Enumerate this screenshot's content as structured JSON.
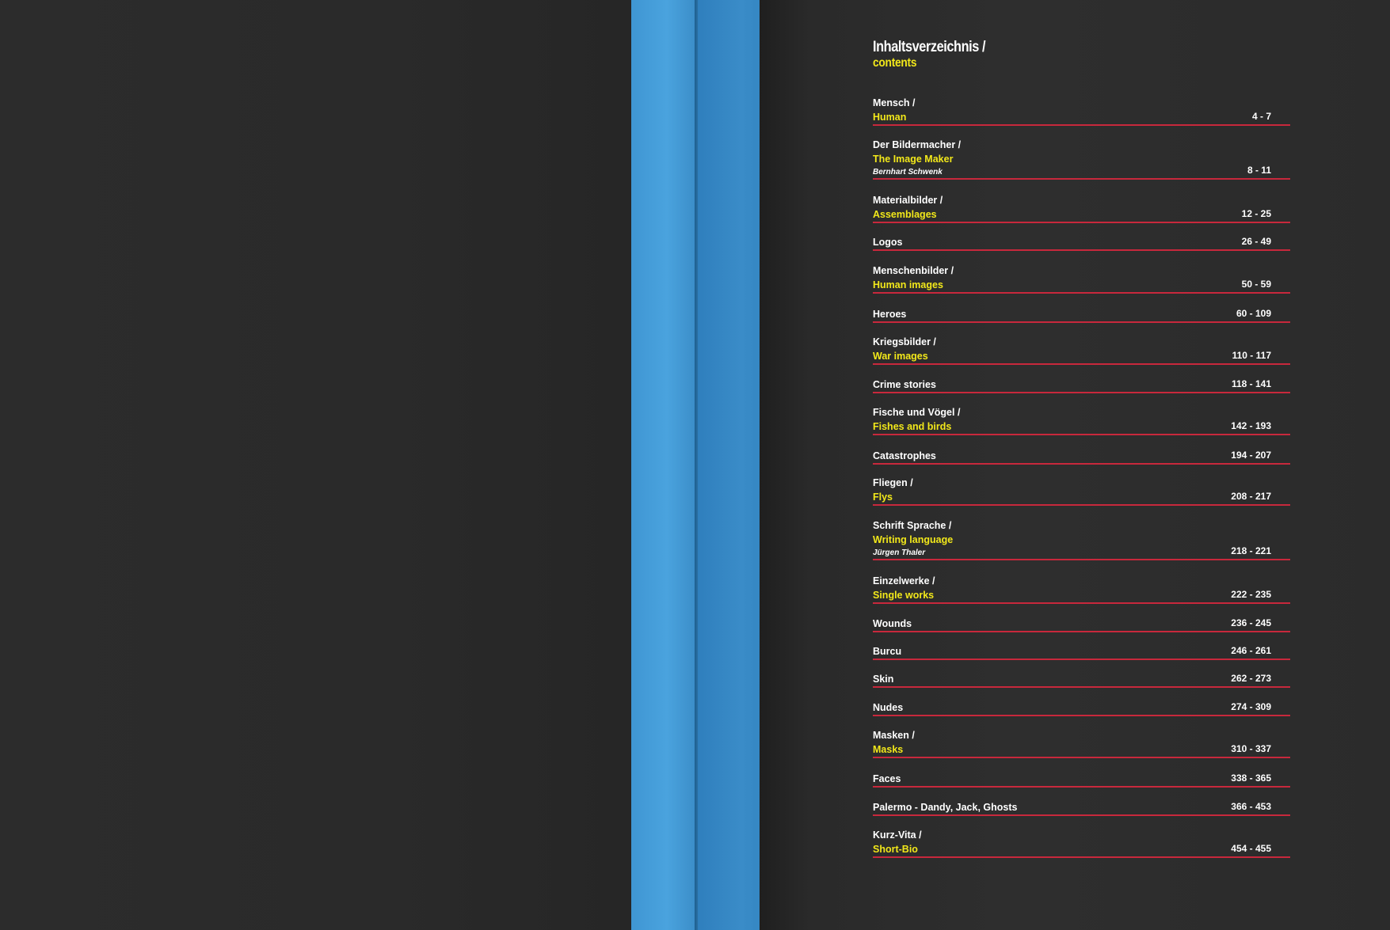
{
  "toc": {
    "title": "Inhaltsverzeichnis /",
    "subtitle": "contents",
    "entries": [
      {
        "de": "Mensch /",
        "en": "Human",
        "author": "",
        "pages": "4 - 7"
      },
      {
        "de": "Der Bildermacher /",
        "en": "The Image Maker",
        "author": "Bernhart Schwenk",
        "pages": "8 - 11"
      },
      {
        "de": "Materialbilder /",
        "en": "Assemblages",
        "author": "",
        "pages": "12 - 25"
      },
      {
        "de": "Logos",
        "en": "",
        "author": "",
        "pages": "26 - 49"
      },
      {
        "de": "Menschenbilder /",
        "en": "Human images",
        "author": "",
        "pages": "50 - 59"
      },
      {
        "de": "Heroes",
        "en": "",
        "author": "",
        "pages": "60 - 109"
      },
      {
        "de": "Kriegsbilder /",
        "en": "War images",
        "author": "",
        "pages": "110 - 117"
      },
      {
        "de": "Crime stories",
        "en": "",
        "author": "",
        "pages": "118 - 141"
      },
      {
        "de": "Fische und Vögel /",
        "en": "Fishes and birds",
        "author": "",
        "pages": "142 - 193"
      },
      {
        "de": "Catastrophes",
        "en": "",
        "author": "",
        "pages": "194 - 207"
      },
      {
        "de": "Fliegen /",
        "en": "Flys",
        "author": "",
        "pages": "208 - 217"
      },
      {
        "de": "Schrift Sprache /",
        "en": "Writing language",
        "author": "Jürgen Thaler",
        "pages": "218 - 221"
      },
      {
        "de": "Einzelwerke /",
        "en": "Single works",
        "author": "",
        "pages": "222 - 235"
      },
      {
        "de": "Wounds",
        "en": "",
        "author": "",
        "pages": "236 - 245"
      },
      {
        "de": "Burcu",
        "en": "",
        "author": "",
        "pages": "246 - 261"
      },
      {
        "de": "Skin",
        "en": "",
        "author": "",
        "pages": "262 - 273"
      },
      {
        "de": "Nudes",
        "en": "",
        "author": "",
        "pages": "274 - 309"
      },
      {
        "de": "Masken /",
        "en": "Masks",
        "author": "",
        "pages": "310 - 337"
      },
      {
        "de": "Faces",
        "en": "",
        "author": "",
        "pages": "338 - 365"
      },
      {
        "de": "Palermo - Dandy, Jack, Ghosts",
        "en": "",
        "author": "",
        "pages": "366 - 453"
      },
      {
        "de": "Kurz-Vita /",
        "en": "Short-Bio",
        "author": "",
        "pages": "454 - 455"
      }
    ]
  },
  "colors": {
    "accent_yellow": "#f2e81a",
    "rule_red": "#c8283c",
    "spine_blue": "#4aa3de",
    "page_dark": "#2a2a2a"
  }
}
